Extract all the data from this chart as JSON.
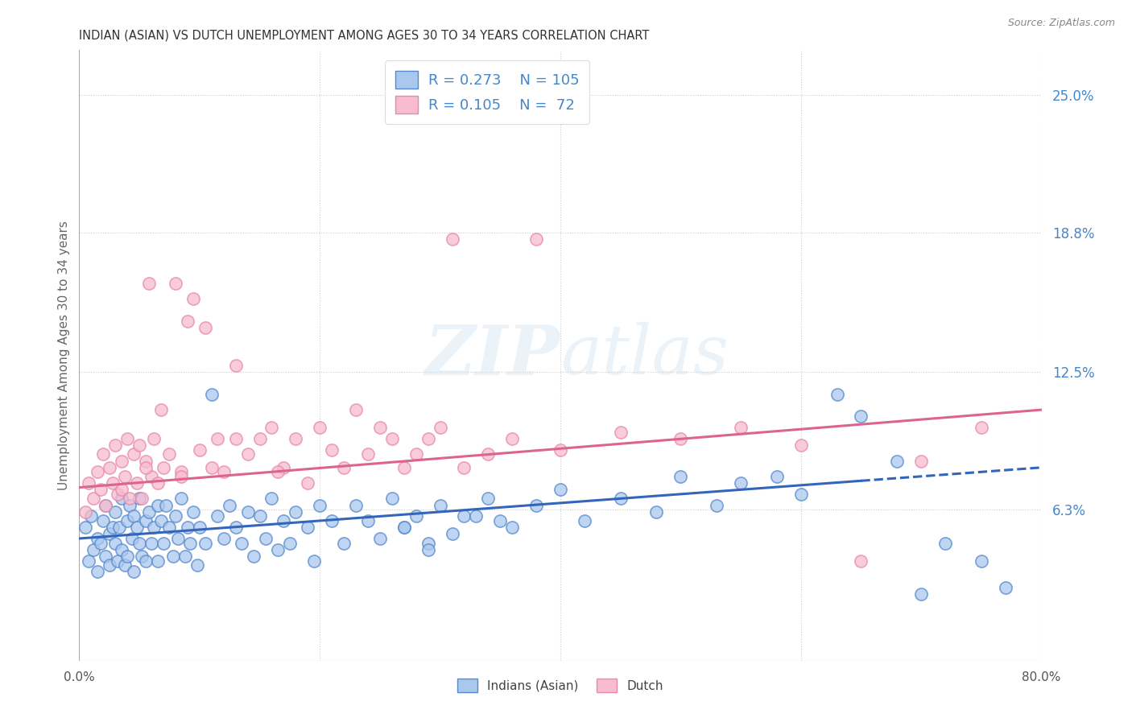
{
  "title": "INDIAN (ASIAN) VS DUTCH UNEMPLOYMENT AMONG AGES 30 TO 34 YEARS CORRELATION CHART",
  "source": "Source: ZipAtlas.com",
  "ylabel": "Unemployment Among Ages 30 to 34 years",
  "ytick_labels": [
    "6.3%",
    "12.5%",
    "18.8%",
    "25.0%"
  ],
  "ytick_values": [
    0.063,
    0.125,
    0.188,
    0.25
  ],
  "xmin": 0.0,
  "xmax": 0.8,
  "ymin": -0.005,
  "ymax": 0.27,
  "R_indian": 0.273,
  "N_indian": 105,
  "R_dutch": 0.105,
  "N_dutch": 72,
  "color_indian_fill": "#aac8ee",
  "color_indian_edge": "#5588cc",
  "color_dutch_fill": "#f8bcd0",
  "color_dutch_edge": "#e888aa",
  "color_trend_indian": "#3366bb",
  "color_trend_dutch": "#dd6688",
  "color_label_blue": "#4488cc",
  "color_grid": "#cccccc",
  "color_title": "#333333",
  "trend_indian_x0": 0.0,
  "trend_indian_y0": 0.05,
  "trend_indian_x1": 0.8,
  "trend_indian_y1": 0.082,
  "trend_dutch_x0": 0.0,
  "trend_dutch_y0": 0.073,
  "trend_dutch_x1": 0.8,
  "trend_dutch_y1": 0.108,
  "scatter_indian_x": [
    0.005,
    0.008,
    0.01,
    0.012,
    0.015,
    0.015,
    0.018,
    0.02,
    0.022,
    0.022,
    0.025,
    0.025,
    0.028,
    0.03,
    0.03,
    0.032,
    0.033,
    0.035,
    0.035,
    0.038,
    0.04,
    0.04,
    0.042,
    0.044,
    0.045,
    0.045,
    0.048,
    0.05,
    0.05,
    0.052,
    0.055,
    0.055,
    0.058,
    0.06,
    0.062,
    0.065,
    0.065,
    0.068,
    0.07,
    0.072,
    0.075,
    0.078,
    0.08,
    0.082,
    0.085,
    0.088,
    0.09,
    0.092,
    0.095,
    0.098,
    0.1,
    0.105,
    0.11,
    0.115,
    0.12,
    0.125,
    0.13,
    0.135,
    0.14,
    0.145,
    0.15,
    0.155,
    0.16,
    0.165,
    0.17,
    0.175,
    0.18,
    0.19,
    0.195,
    0.2,
    0.21,
    0.22,
    0.23,
    0.24,
    0.25,
    0.26,
    0.27,
    0.28,
    0.29,
    0.3,
    0.32,
    0.34,
    0.36,
    0.38,
    0.4,
    0.42,
    0.45,
    0.48,
    0.5,
    0.53,
    0.55,
    0.58,
    0.6,
    0.63,
    0.65,
    0.68,
    0.7,
    0.72,
    0.75,
    0.77,
    0.35,
    0.31,
    0.33,
    0.29,
    0.27
  ],
  "scatter_indian_y": [
    0.055,
    0.04,
    0.06,
    0.045,
    0.05,
    0.035,
    0.048,
    0.058,
    0.042,
    0.065,
    0.052,
    0.038,
    0.055,
    0.048,
    0.062,
    0.04,
    0.055,
    0.045,
    0.068,
    0.038,
    0.058,
    0.042,
    0.065,
    0.05,
    0.06,
    0.035,
    0.055,
    0.048,
    0.068,
    0.042,
    0.058,
    0.04,
    0.062,
    0.048,
    0.055,
    0.065,
    0.04,
    0.058,
    0.048,
    0.065,
    0.055,
    0.042,
    0.06,
    0.05,
    0.068,
    0.042,
    0.055,
    0.048,
    0.062,
    0.038,
    0.055,
    0.048,
    0.115,
    0.06,
    0.05,
    0.065,
    0.055,
    0.048,
    0.062,
    0.042,
    0.06,
    0.05,
    0.068,
    0.045,
    0.058,
    0.048,
    0.062,
    0.055,
    0.04,
    0.065,
    0.058,
    0.048,
    0.065,
    0.058,
    0.05,
    0.068,
    0.055,
    0.06,
    0.048,
    0.065,
    0.06,
    0.068,
    0.055,
    0.065,
    0.072,
    0.058,
    0.068,
    0.062,
    0.078,
    0.065,
    0.075,
    0.078,
    0.07,
    0.115,
    0.105,
    0.085,
    0.025,
    0.048,
    0.04,
    0.028,
    0.058,
    0.052,
    0.06,
    0.045,
    0.055
  ],
  "scatter_dutch_x": [
    0.005,
    0.008,
    0.012,
    0.015,
    0.018,
    0.02,
    0.022,
    0.025,
    0.028,
    0.03,
    0.032,
    0.035,
    0.038,
    0.04,
    0.042,
    0.045,
    0.048,
    0.05,
    0.052,
    0.055,
    0.058,
    0.06,
    0.062,
    0.065,
    0.068,
    0.07,
    0.075,
    0.08,
    0.085,
    0.09,
    0.095,
    0.1,
    0.105,
    0.11,
    0.115,
    0.12,
    0.13,
    0.14,
    0.15,
    0.16,
    0.17,
    0.18,
    0.19,
    0.2,
    0.21,
    0.22,
    0.23,
    0.24,
    0.25,
    0.26,
    0.27,
    0.28,
    0.29,
    0.3,
    0.32,
    0.34,
    0.36,
    0.38,
    0.4,
    0.45,
    0.5,
    0.55,
    0.6,
    0.65,
    0.7,
    0.75,
    0.035,
    0.055,
    0.085,
    0.13,
    0.165,
    0.31
  ],
  "scatter_dutch_y": [
    0.062,
    0.075,
    0.068,
    0.08,
    0.072,
    0.088,
    0.065,
    0.082,
    0.075,
    0.092,
    0.07,
    0.085,
    0.078,
    0.095,
    0.068,
    0.088,
    0.075,
    0.092,
    0.068,
    0.085,
    0.165,
    0.078,
    0.095,
    0.075,
    0.108,
    0.082,
    0.088,
    0.165,
    0.08,
    0.148,
    0.158,
    0.09,
    0.145,
    0.082,
    0.095,
    0.08,
    0.128,
    0.088,
    0.095,
    0.1,
    0.082,
    0.095,
    0.075,
    0.1,
    0.09,
    0.082,
    0.108,
    0.088,
    0.1,
    0.095,
    0.082,
    0.088,
    0.095,
    0.1,
    0.082,
    0.088,
    0.095,
    0.185,
    0.09,
    0.098,
    0.095,
    0.1,
    0.092,
    0.04,
    0.085,
    0.1,
    0.072,
    0.082,
    0.078,
    0.095,
    0.08,
    0.185
  ]
}
